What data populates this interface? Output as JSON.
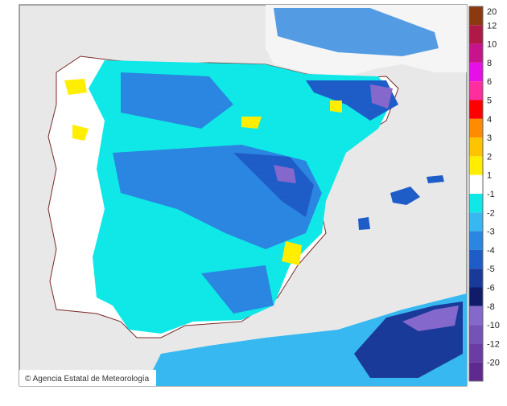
{
  "legend": {
    "labels": [
      "20",
      "12",
      "10",
      "8",
      "6",
      "5",
      "4",
      "3",
      "2",
      "1",
      "-1",
      "-2",
      "-3",
      "-4",
      "-5",
      "-6",
      "-8",
      "-10",
      "-12",
      "-20"
    ],
    "colors": [
      "#8b3a10",
      "#b01848",
      "#c8148c",
      "#e610e6",
      "#ff2d9e",
      "#ff0000",
      "#ff8c00",
      "#ffc400",
      "#ffee00",
      "#ffffff",
      "#10e8e8",
      "#38b8f0",
      "#2a86e0",
      "#1e5cc8",
      "#1a3a9a",
      "#101c6a",
      "#8468cc",
      "#7452b8",
      "#6a3ca4",
      "#5e2a90"
    ]
  },
  "credit": "© Agencia Estatal de Meteorología"
}
